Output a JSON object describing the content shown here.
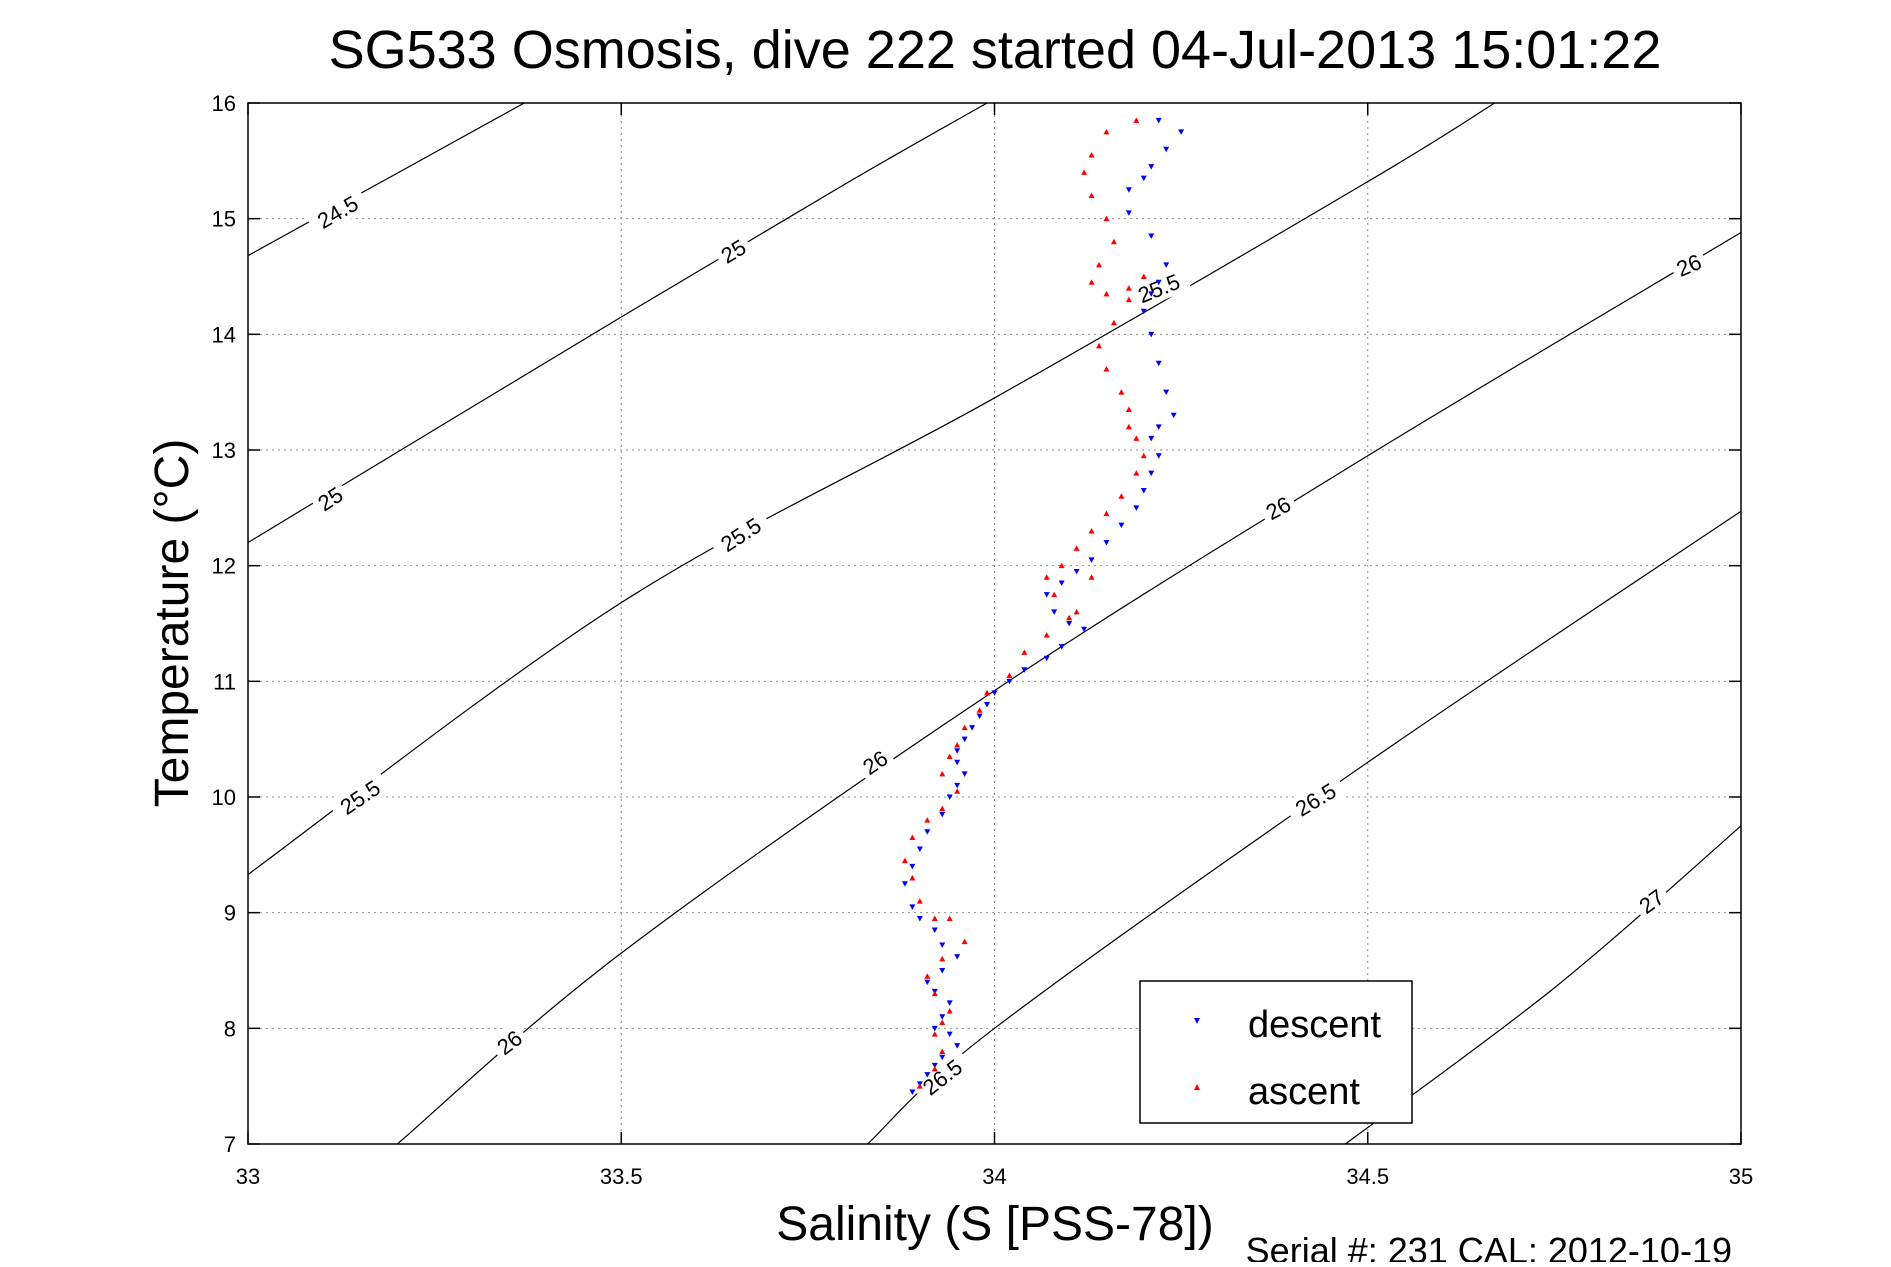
{
  "chart_data": {
    "type": "scatter",
    "title": "SG533 Osmosis, dive 222 started 04-Jul-2013 15:01:22",
    "xlabel": "Salinity (S [PSS-78])",
    "ylabel": "Temperature (°C)",
    "xlim": [
      33,
      35
    ],
    "ylim": [
      7,
      16
    ],
    "xticks": [
      "33",
      "33.5",
      "34",
      "34.5",
      "35"
    ],
    "yticks": [
      "7",
      "8",
      "9",
      "10",
      "11",
      "12",
      "13",
      "14",
      "15",
      "16"
    ],
    "grid": true,
    "footer": "Serial #: 231  CAL: 2012-10-19",
    "legend": {
      "placement": "bottom-right",
      "entries": [
        {
          "label": "descent",
          "color": "#0000ff",
          "marker": "triangle-down"
        },
        {
          "label": "ascent",
          "color": "#ff0000",
          "marker": "triangle-up"
        }
      ]
    },
    "contours": {
      "color": "#000000",
      "lines": [
        {
          "value": 24.5,
          "points": [
            [
              33.0,
              14.68
            ],
            [
              33.37,
              16.0
            ]
          ]
        },
        {
          "value": 25,
          "points": [
            [
              33.0,
              12.2
            ],
            [
              33.5,
              14.15
            ],
            [
              33.8,
              15.3
            ],
            [
              33.99,
              16.0
            ]
          ]
        },
        {
          "value": 25.5,
          "points": [
            [
              33.0,
              9.33
            ],
            [
              33.5,
              11.68
            ],
            [
              34.0,
              13.45
            ],
            [
              34.5,
              15.32
            ],
            [
              34.67,
              16.0
            ]
          ]
        },
        {
          "value": 26,
          "points": [
            [
              33.2,
              7.0
            ],
            [
              33.5,
              8.65
            ],
            [
              34.0,
              10.92
            ],
            [
              34.5,
              12.95
            ],
            [
              35.0,
              14.88
            ]
          ]
        },
        {
          "value": 26.5,
          "points": [
            [
              33.83,
              7.0
            ],
            [
              34.0,
              8.0
            ],
            [
              34.5,
              10.3
            ],
            [
              35.0,
              12.47
            ]
          ]
        },
        {
          "value": 27,
          "points": [
            [
              34.47,
              7.0
            ],
            [
              34.75,
              8.35
            ],
            [
              35.0,
              9.75
            ]
          ]
        }
      ],
      "labels": [
        {
          "text": "24.5",
          "s": 33.12,
          "t": 15.06,
          "angle": -30
        },
        {
          "text": "25",
          "s": 33.65,
          "t": 14.72,
          "angle": -31
        },
        {
          "text": "25",
          "s": 33.11,
          "t": 12.58,
          "angle": -33
        },
        {
          "text": "25.5",
          "s": 34.22,
          "t": 14.4,
          "angle": -22
        },
        {
          "text": "25.5",
          "s": 33.66,
          "t": 12.27,
          "angle": -33
        },
        {
          "text": "25.5",
          "s": 33.15,
          "t": 10.0,
          "angle": -34
        },
        {
          "text": "26",
          "s": 34.93,
          "t": 14.6,
          "angle": -23
        },
        {
          "text": "26",
          "s": 34.38,
          "t": 12.5,
          "angle": -28
        },
        {
          "text": "26",
          "s": 33.84,
          "t": 10.3,
          "angle": -34
        },
        {
          "text": "26",
          "s": 33.35,
          "t": 7.88,
          "angle": -37
        },
        {
          "text": "26.5",
          "s": 34.43,
          "t": 9.98,
          "angle": -31
        },
        {
          "text": "26.5",
          "s": 33.93,
          "t": 7.58,
          "angle": -38
        },
        {
          "text": "27",
          "s": 34.88,
          "t": 9.1,
          "angle": -36
        }
      ]
    },
    "series": [
      {
        "name": "descent",
        "color": "#0000ff",
        "marker": "triangle-down",
        "x": [
          34.22,
          34.25,
          34.23,
          34.21,
          34.2,
          34.18,
          34.18,
          34.21,
          34.23,
          34.22,
          34.21,
          34.2,
          34.21,
          34.22,
          34.23,
          34.24,
          34.22,
          34.21,
          34.22,
          34.21,
          34.2,
          34.19,
          34.17,
          34.15,
          34.13,
          34.11,
          34.09,
          34.07,
          34.08,
          34.1,
          34.12,
          34.09,
          34.07,
          34.04,
          34.02,
          34.0,
          33.99,
          33.98,
          33.97,
          33.96,
          33.95,
          33.95,
          33.96,
          33.95,
          33.94,
          33.93,
          33.91,
          33.9,
          33.89,
          33.88,
          33.89,
          33.9,
          33.92,
          33.93,
          33.95,
          33.93,
          33.91,
          33.92,
          33.94,
          33.93,
          33.92,
          33.94,
          33.95,
          33.93,
          33.92,
          33.91,
          33.9,
          33.89
        ],
        "y": [
          15.85,
          15.75,
          15.6,
          15.45,
          15.35,
          15.25,
          15.05,
          14.85,
          14.6,
          14.45,
          14.35,
          14.2,
          14.0,
          13.75,
          13.5,
          13.3,
          13.2,
          13.1,
          12.95,
          12.8,
          12.65,
          12.5,
          12.35,
          12.2,
          12.05,
          11.95,
          11.85,
          11.75,
          11.6,
          11.5,
          11.45,
          11.3,
          11.2,
          11.1,
          11.0,
          10.9,
          10.8,
          10.7,
          10.6,
          10.5,
          10.4,
          10.3,
          10.2,
          10.1,
          10.0,
          9.85,
          9.7,
          9.55,
          9.4,
          9.25,
          9.05,
          8.95,
          8.85,
          8.72,
          8.62,
          8.5,
          8.4,
          8.32,
          8.22,
          8.1,
          8.0,
          7.95,
          7.85,
          7.75,
          7.68,
          7.6,
          7.52,
          7.45
        ]
      },
      {
        "name": "ascent",
        "color": "#ff0000",
        "marker": "triangle-up",
        "x": [
          34.19,
          34.15,
          34.13,
          34.12,
          34.13,
          34.15,
          34.16,
          34.14,
          34.13,
          34.15,
          34.18,
          34.2,
          34.18,
          34.16,
          34.14,
          34.15,
          34.17,
          34.18,
          34.18,
          34.19,
          34.2,
          34.19,
          34.17,
          34.15,
          34.13,
          34.11,
          34.09,
          34.07,
          34.08,
          34.11,
          34.13,
          34.1,
          34.07,
          34.04,
          34.02,
          33.99,
          33.98,
          33.96,
          33.95,
          33.94,
          33.93,
          33.95,
          33.93,
          33.91,
          33.89,
          33.88,
          33.89,
          33.9,
          33.92,
          33.94,
          33.96,
          33.93,
          33.91,
          33.92,
          33.94,
          33.93,
          33.92,
          33.93,
          33.92,
          33.9
        ],
        "y": [
          15.85,
          15.75,
          15.55,
          15.4,
          15.2,
          15.0,
          14.8,
          14.6,
          14.45,
          14.35,
          14.4,
          14.5,
          14.3,
          14.1,
          13.9,
          13.7,
          13.5,
          13.35,
          13.2,
          13.1,
          12.95,
          12.8,
          12.6,
          12.45,
          12.3,
          12.15,
          12.0,
          11.9,
          11.75,
          11.6,
          11.9,
          11.55,
          11.4,
          11.25,
          11.05,
          10.9,
          10.75,
          10.6,
          10.45,
          10.35,
          10.2,
          10.05,
          9.9,
          9.8,
          9.65,
          9.45,
          9.3,
          9.1,
          8.95,
          8.95,
          8.75,
          8.6,
          8.45,
          8.3,
          8.15,
          8.05,
          7.95,
          7.8,
          7.65,
          7.5
        ]
      }
    ]
  }
}
